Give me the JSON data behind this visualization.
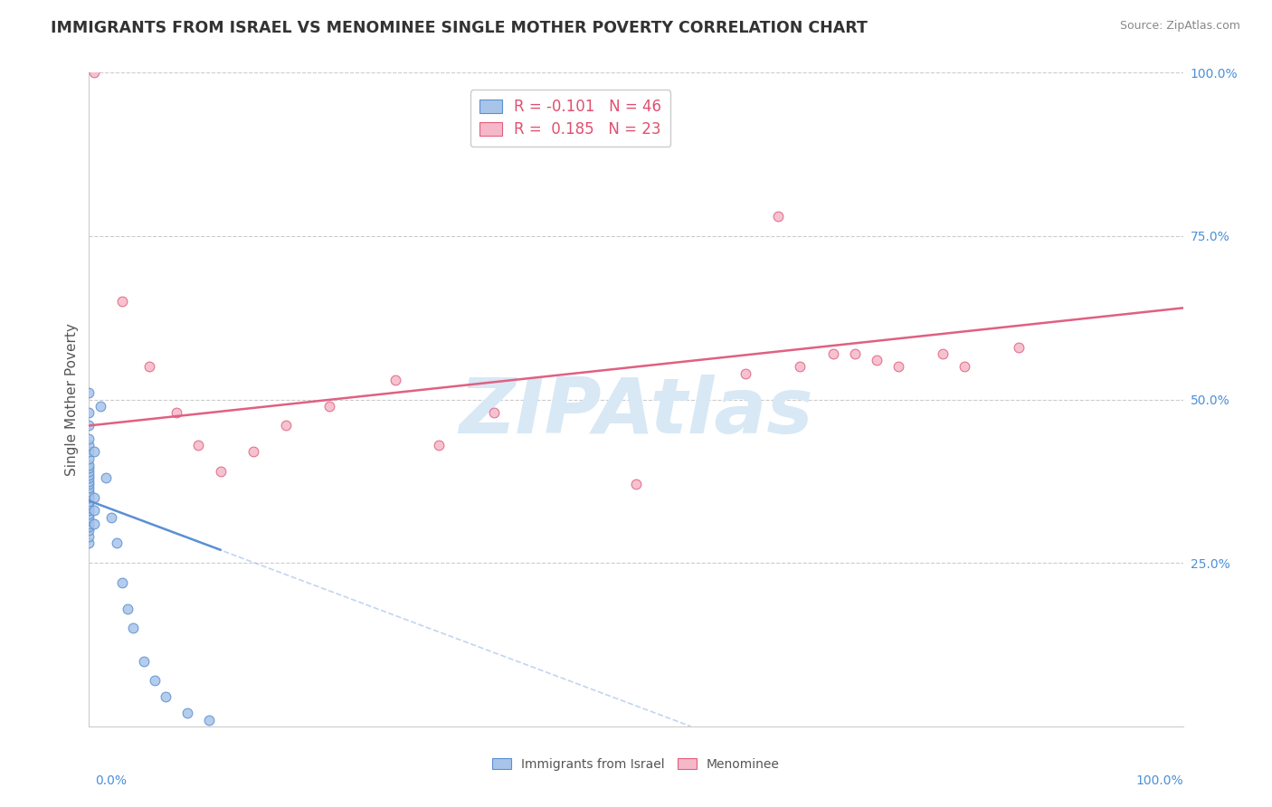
{
  "title": "IMMIGRANTS FROM ISRAEL VS MENOMINEE SINGLE MOTHER POVERTY CORRELATION CHART",
  "source": "Source: ZipAtlas.com",
  "ylabel": "Single Mother Poverty",
  "legend_label1": "Immigrants from Israel",
  "legend_label2": "Menominee",
  "R1": -0.101,
  "N1": 46,
  "R2": 0.185,
  "N2": 23,
  "color_blue": "#a8c4e8",
  "color_pink": "#f5b8c8",
  "color_blue_line": "#5b8fd4",
  "color_pink_line": "#e06080",
  "color_dashed": "#a8c4e8",
  "watermark": "ZIPAtlas",
  "watermark_color": "#d8e8f5",
  "xmin": 0.0,
  "xmax": 100.0,
  "ymin": 0.0,
  "ymax": 100.0,
  "blue_points_x": [
    0.0,
    0.0,
    0.0,
    0.0,
    0.0,
    0.0,
    0.0,
    0.0,
    0.0,
    0.0,
    0.0,
    0.0,
    0.0,
    0.0,
    0.0,
    0.0,
    0.0,
    0.0,
    0.0,
    0.0,
    0.0,
    0.0,
    0.0,
    0.0,
    0.0,
    0.0,
    0.0,
    0.0,
    0.0,
    0.0,
    0.5,
    0.5,
    0.5,
    0.5,
    1.0,
    1.5,
    2.0,
    2.5,
    3.0,
    3.5,
    4.0,
    5.0,
    6.0,
    7.0,
    9.0,
    11.0
  ],
  "blue_points_y": [
    28.0,
    29.0,
    30.0,
    30.5,
    31.0,
    31.5,
    32.0,
    32.5,
    33.0,
    33.5,
    34.0,
    34.5,
    35.0,
    35.5,
    36.0,
    36.5,
    37.0,
    37.5,
    38.0,
    38.5,
    39.0,
    39.5,
    40.0,
    41.0,
    42.0,
    43.0,
    44.0,
    46.0,
    48.0,
    51.0,
    31.0,
    33.0,
    35.0,
    42.0,
    49.0,
    38.0,
    32.0,
    28.0,
    22.0,
    18.0,
    15.0,
    10.0,
    7.0,
    4.5,
    2.0,
    1.0
  ],
  "pink_points_x": [
    0.5,
    3.0,
    5.5,
    8.0,
    10.0,
    12.0,
    15.0,
    18.0,
    22.0,
    28.0,
    32.0,
    37.0,
    50.0,
    60.0,
    63.0,
    65.0,
    68.0,
    70.0,
    72.0,
    74.0,
    78.0,
    80.0,
    85.0
  ],
  "pink_points_y": [
    100.0,
    65.0,
    55.0,
    48.0,
    43.0,
    39.0,
    42.0,
    46.0,
    49.0,
    53.0,
    43.0,
    48.0,
    37.0,
    54.0,
    78.0,
    55.0,
    57.0,
    57.0,
    56.0,
    55.0,
    57.0,
    55.0,
    58.0
  ],
  "blue_trend_x0": 0.0,
  "blue_trend_x1": 12.0,
  "blue_trend_y0": 34.5,
  "blue_trend_y1": 27.0,
  "pink_trend_x0": 0.0,
  "pink_trend_x1": 100.0,
  "pink_trend_y0": 46.0,
  "pink_trend_y1": 64.0,
  "dashed_x0": 0.0,
  "dashed_x1": 55.0,
  "dashed_y0": 34.5,
  "dashed_y1": 0.0
}
